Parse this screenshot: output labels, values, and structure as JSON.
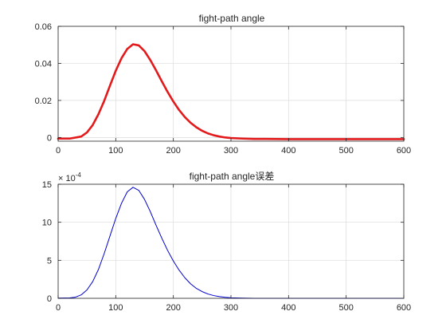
{
  "chart_data": [
    {
      "type": "line",
      "title": "fight-path angle",
      "xlim": [
        0,
        600
      ],
      "ylim": [
        -0.002,
        0.06
      ],
      "xticks": [
        "0",
        "100",
        "200",
        "300",
        "400",
        "500",
        "600"
      ],
      "yticks": [
        "0",
        "0.02",
        "0.04",
        "0.06"
      ],
      "grid": true,
      "series": [
        {
          "color": "#e31a1c",
          "x": [
            0,
            20,
            40,
            50,
            60,
            70,
            80,
            90,
            100,
            110,
            120,
            130,
            140,
            150,
            160,
            170,
            180,
            190,
            200,
            210,
            220,
            230,
            240,
            250,
            260,
            270,
            280,
            290,
            300,
            320,
            340,
            360,
            400,
            450,
            500,
            550,
            600
          ],
          "y": [
            -0.0006,
            -0.0006,
            0.0005,
            0.0027,
            0.0067,
            0.0126,
            0.0198,
            0.028,
            0.036,
            0.0428,
            0.0478,
            0.0503,
            0.0497,
            0.0466,
            0.0418,
            0.0362,
            0.0303,
            0.0246,
            0.0194,
            0.0148,
            0.011,
            0.0079,
            0.0055,
            0.0036,
            0.0022,
            0.0012,
            0.0005,
            0.0,
            -0.0003,
            -0.0006,
            -0.0008,
            -0.0008,
            -0.0009,
            -0.0009,
            -0.0009,
            -0.0009,
            -0.0009
          ]
        }
      ]
    },
    {
      "type": "line",
      "title": "fight-path angle误差",
      "xlim": [
        0,
        600
      ],
      "ylim": [
        0,
        15
      ],
      "xticks": [
        "0",
        "100",
        "200",
        "300",
        "400",
        "500",
        "600"
      ],
      "yticks": [
        "0",
        "5",
        "10",
        "15"
      ],
      "exponent_label": "× 10",
      "exponent_power": "-4",
      "grid": true,
      "series": [
        {
          "color": "#0000cc",
          "x": [
            0,
            20,
            30,
            40,
            50,
            60,
            70,
            80,
            90,
            100,
            110,
            120,
            130,
            140,
            150,
            160,
            170,
            180,
            190,
            200,
            210,
            220,
            230,
            240,
            250,
            260,
            270,
            280,
            290,
            300,
            320,
            340,
            360,
            400,
            450,
            500,
            550,
            600
          ],
          "y": [
            0.02,
            0.05,
            0.15,
            0.45,
            1.1,
            2.2,
            3.8,
            5.9,
            8.2,
            10.5,
            12.5,
            14.0,
            14.6,
            14.2,
            13.0,
            11.4,
            9.6,
            7.9,
            6.3,
            4.9,
            3.7,
            2.7,
            1.9,
            1.3,
            0.88,
            0.57,
            0.36,
            0.22,
            0.13,
            0.07,
            0.02,
            0.0,
            0.0,
            0.0,
            0.0,
            0.0,
            0.0,
            0.0
          ]
        }
      ]
    }
  ]
}
